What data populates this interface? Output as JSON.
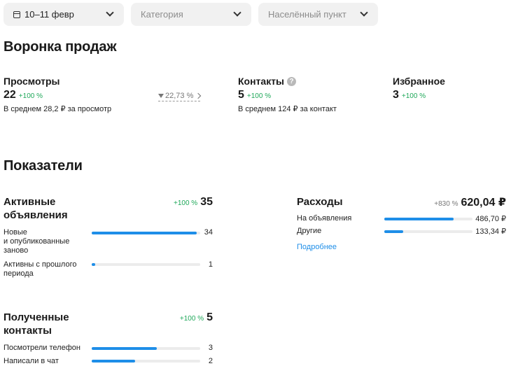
{
  "filters": {
    "date": {
      "value": "10–11 февр",
      "icon": "calendar-icon"
    },
    "category": {
      "placeholder": "Категория"
    },
    "location": {
      "placeholder": "Населённый пункт"
    }
  },
  "funnel": {
    "title": "Воронка продаж",
    "views": {
      "label": "Просмотры",
      "value": "22",
      "change": "+100 %",
      "sub": "В среднем 28,2 ₽ за просмотр"
    },
    "conversion": {
      "value": "22,73 %"
    },
    "contacts": {
      "label": "Контакты",
      "help": "?",
      "value": "5",
      "change": "+100 %",
      "sub": "В среднем 124 ₽ за контакт"
    },
    "favorites": {
      "label": "Избранное",
      "value": "3",
      "change": "+100 %"
    }
  },
  "metrics": {
    "title": "Показатели",
    "active": {
      "title_line1": "Активные",
      "title_line2": "объявления",
      "change": "+100 %",
      "total": "35",
      "rows": [
        {
          "label_lines": [
            "Новые",
            "и опубликованные",
            "заново"
          ],
          "value": "34",
          "fraction": 0.97
        },
        {
          "label_lines": [
            "Активны с прошлого",
            "периода"
          ],
          "value": "1",
          "fraction": 0.03
        }
      ]
    },
    "expenses": {
      "title": "Расходы",
      "change": "+830 %",
      "total": "620,04 ₽",
      "rows": [
        {
          "label": "На объявления",
          "value": "486,70 ₽",
          "fraction": 0.785
        },
        {
          "label": "Другие",
          "value": "133,34 ₽",
          "fraction": 0.215
        }
      ],
      "more_link": "Подробнее"
    },
    "contacts": {
      "title_line1": "Полученные",
      "title_line2": "контакты",
      "change": "+100 %",
      "total": "5",
      "rows": [
        {
          "label": "Посмотрели телефон",
          "value": "3",
          "fraction": 0.6
        },
        {
          "label": "Написали в чат",
          "value": "2",
          "fraction": 0.4
        }
      ]
    }
  },
  "colors": {
    "accent": "#1e8ee8",
    "positive": "#20a85a",
    "filter_bg": "#f1f1f1",
    "track": "#ececec"
  }
}
